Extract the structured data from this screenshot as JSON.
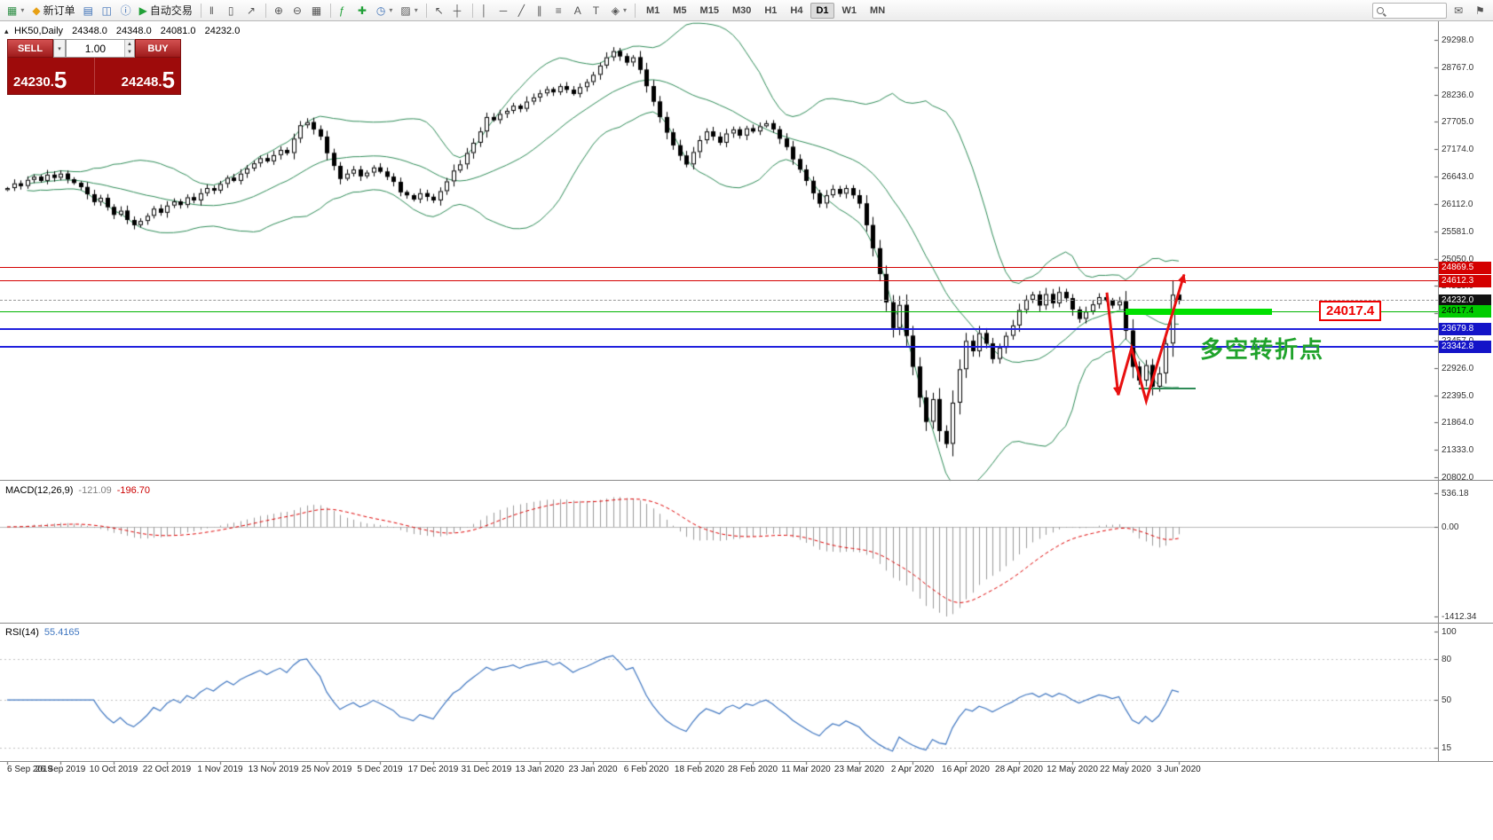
{
  "toolbar": {
    "groups": [
      [
        {
          "name": "new-chart-button",
          "glyph": "▦",
          "glyph_color": "#2f8f46",
          "caret": true
        },
        {
          "name": "new-order-button",
          "glyph": "◆",
          "glyph_color": "#e7a013",
          "label": "新订单"
        },
        {
          "name": "market-watch-button",
          "glyph": "▤",
          "glyph_color": "#3b6fb6"
        },
        {
          "name": "data-window-button",
          "glyph": "◫",
          "glyph_color": "#3b6fb6"
        },
        {
          "name": "navigator-button",
          "glyph": "ⓘ",
          "glyph_color": "#3b6fb6"
        },
        {
          "name": "autotrading-button",
          "glyph": "▶",
          "glyph_color": "#21a038",
          "label": "自动交易"
        }
      ],
      [
        {
          "name": "chart-bars-button",
          "glyph": "‖"
        },
        {
          "name": "chart-candles-button",
          "glyph": "▯"
        },
        {
          "name": "chart-line-button",
          "glyph": "↗"
        }
      ],
      [
        {
          "name": "zoom-in-button",
          "glyph": "⊕"
        },
        {
          "name": "zoom-out-button",
          "glyph": "⊖"
        },
        {
          "name": "tile-windows-button",
          "glyph": "▦"
        }
      ],
      [
        {
          "name": "indicators-button",
          "glyph": "ƒ",
          "glyph_color": "#21a038"
        },
        {
          "name": "add-indicator-button",
          "glyph": "✚",
          "glyph_color": "#21a038"
        },
        {
          "name": "periods-button",
          "glyph": "◷",
          "glyph_color": "#3b6fb6",
          "caret": true
        },
        {
          "name": "templates-button",
          "glyph": "▨",
          "caret": true
        }
      ],
      [
        {
          "name": "cursor-button",
          "glyph": "↖"
        },
        {
          "name": "crosshair-button",
          "glyph": "┼"
        }
      ],
      [
        {
          "name": "vertical-line-button",
          "glyph": "│"
        },
        {
          "name": "horizontal-line-button",
          "glyph": "─"
        },
        {
          "name": "trendline-button",
          "glyph": "╱"
        },
        {
          "name": "channel-button",
          "glyph": "∥"
        },
        {
          "name": "fibonacci-button",
          "glyph": "≡"
        },
        {
          "name": "text-button",
          "glyph": "A"
        },
        {
          "name": "label-button",
          "glyph": "T"
        },
        {
          "name": "objects-button",
          "glyph": "◈",
          "caret": true
        }
      ]
    ],
    "timeframes": [
      "M1",
      "M5",
      "M15",
      "M30",
      "H1",
      "H4",
      "D1",
      "W1",
      "MN"
    ],
    "active_timeframe": "D1",
    "search_placeholder": "",
    "right_icons": [
      {
        "name": "community-button",
        "glyph": "✉"
      },
      {
        "name": "alerts-button",
        "glyph": "⚑"
      }
    ]
  },
  "trade_panel": {
    "sell_label": "SELL",
    "buy_label": "BUY",
    "volume": "1.00",
    "sell_price_main": "24230.",
    "sell_price_big": "5",
    "buy_price_main": "24248.",
    "buy_price_big": "5"
  },
  "chart": {
    "collapse_arrow": "▴",
    "symbol_line": "HK50,Daily",
    "open": "24348.0",
    "high": "24348.0",
    "low": "24081.0",
    "close": "24232.0",
    "y_ticks": [
      {
        "label": "29298.0",
        "price": 29298
      },
      {
        "label": "28767.0",
        "price": 28767
      },
      {
        "label": "28236.0",
        "price": 28236
      },
      {
        "label": "27705.0",
        "price": 27705
      },
      {
        "label": "27174.0",
        "price": 27174
      },
      {
        "label": "26643.0",
        "price": 26643
      },
      {
        "label": "26112.0",
        "price": 26112
      },
      {
        "label": "25581.0",
        "price": 25581
      },
      {
        "label": "25050.0",
        "price": 25050
      },
      {
        "label": "24519.0",
        "price": 24519
      },
      {
        "label": "23988.0",
        "price": 23988
      },
      {
        "label": "23457.0",
        "price": 23457
      },
      {
        "label": "22926.0",
        "price": 22926
      },
      {
        "label": "22395.0",
        "price": 22395
      },
      {
        "label": "21864.0",
        "price": 21864
      },
      {
        "label": "21333.0",
        "price": 21333
      },
      {
        "label": "20802.0",
        "price": 20802
      }
    ],
    "price_labels": [
      {
        "text": "24869.5",
        "price": 24869.5,
        "bg": "#d40000",
        "fg": "#ffffff"
      },
      {
        "text": "24612.3",
        "price": 24612.3,
        "bg": "#d40000",
        "fg": "#ffffff"
      },
      {
        "text": "24232.0",
        "price": 24232.0,
        "bg": "#111111",
        "fg": "#ffffff"
      },
      {
        "text": "24017.4",
        "price": 24017.4,
        "bg": "#00cc00",
        "fg": "#000000"
      },
      {
        "text": "23679.8",
        "price": 23679.8,
        "bg": "#1414c8",
        "fg": "#ffffff"
      },
      {
        "text": "23342.8",
        "price": 23342.8,
        "bg": "#1414c8",
        "fg": "#ffffff"
      }
    ],
    "hlines": [
      {
        "price": 24869.5,
        "color": "#d40000",
        "style": "solid",
        "thickness": 1
      },
      {
        "price": 24612.3,
        "color": "#d40000",
        "style": "solid",
        "thickness": 1
      },
      {
        "price": 24232.0,
        "color": "#999999",
        "style": "dashed",
        "thickness": 1
      },
      {
        "price": 24017.4,
        "color": "#00b400",
        "style": "solid",
        "thickness": 1
      },
      {
        "price": 23679.8,
        "color": "#2020dd",
        "style": "solid",
        "thickness": 2
      },
      {
        "price": 23342.8,
        "color": "#2020dd",
        "style": "solid",
        "thickness": 2
      }
    ],
    "green_zone": {
      "price": 24017.4,
      "from_bar": 168,
      "to_bar": 190,
      "color": "#00e000",
      "thickness": 7
    },
    "support_segment": {
      "price": 22530,
      "from_bar": 170,
      "to_bar": 178.5,
      "color": "#2E8B57",
      "thickness": 2
    },
    "annotation_price_box": {
      "text": "24017.4",
      "color": "#ee0000"
    },
    "annotation_turning_point": {
      "text": "多空转折点",
      "color": "#1fa32b"
    },
    "arrows": {
      "color": "#e81010",
      "points_bar_price": [
        [
          165.2,
          24390
        ],
        [
          166.9,
          22400
        ],
        [
          168.9,
          23310
        ],
        [
          171.1,
          22280
        ],
        [
          176.8,
          24740
        ]
      ]
    }
  },
  "chart_data": {
    "type": "candlestick",
    "symbol": "HK50",
    "timeframe": "Daily",
    "title": "HK50,Daily 24348.0 24348.0 24081.0 24232.0",
    "x_dates": [
      "6 Sep 2019",
      "26 Sep 2019",
      "10 Oct 2019",
      "22 Oct 2019",
      "1 Nov 2019",
      "13 Nov 2019",
      "25 Nov 2019",
      "5 Dec 2019",
      "17 Dec 2019",
      "31 Dec 2019",
      "13 Jan 2020",
      "23 Jan 2020",
      "6 Feb 2020",
      "18 Feb 2020",
      "28 Feb 2020",
      "11 Mar 2020",
      "23 Mar 2020",
      "2 Apr 2020",
      "16 Apr 2020",
      "28 Apr 2020",
      "12 May 2020",
      "22 May 2020",
      "3 Jun 2020"
    ],
    "closes": [
      26420,
      26510,
      26460,
      26580,
      26640,
      26560,
      26680,
      26620,
      26700,
      26590,
      26520,
      26440,
      26300,
      26150,
      26230,
      26050,
      25900,
      25980,
      25800,
      25700,
      25780,
      25880,
      26020,
      25940,
      26080,
      26160,
      26090,
      26240,
      26180,
      26320,
      26420,
      26370,
      26500,
      26620,
      26560,
      26700,
      26800,
      26900,
      27000,
      26940,
      27060,
      27160,
      27100,
      27380,
      27640,
      27700,
      27560,
      27420,
      27100,
      26850,
      26600,
      26700,
      26780,
      26650,
      26720,
      26820,
      26740,
      26640,
      26540,
      26340,
      26280,
      26200,
      26320,
      26250,
      26180,
      26360,
      26550,
      26760,
      26880,
      27100,
      27300,
      27520,
      27800,
      27740,
      27860,
      27920,
      28020,
      27960,
      28100,
      28180,
      28260,
      28340,
      28280,
      28400,
      28330,
      28250,
      28380,
      28480,
      28620,
      28800,
      28960,
      29080,
      28980,
      28860,
      28960,
      28720,
      28400,
      28100,
      27800,
      27500,
      27250,
      27050,
      26880,
      27120,
      27350,
      27520,
      27420,
      27300,
      27480,
      27560,
      27440,
      27580,
      27520,
      27620,
      27680,
      27560,
      27380,
      27220,
      26980,
      26780,
      26560,
      26320,
      26120,
      26280,
      26400,
      26310,
      26420,
      26280,
      26120,
      25700,
      25250,
      24750,
      24200,
      23700,
      24150,
      23550,
      22950,
      22350,
      21880,
      22320,
      21700,
      21450,
      22250,
      22900,
      23450,
      23250,
      23600,
      23400,
      23100,
      23320,
      23550,
      23750,
      24050,
      24250,
      24350,
      24140,
      24360,
      24180,
      24400,
      24280,
      24060,
      23880,
      24020,
      24160,
      24300,
      24240,
      24140,
      24220,
      23650,
      22950,
      22680,
      22980,
      22560,
      22820,
      23400,
      24348,
      24232
    ],
    "overlays": [
      {
        "name": "Bollinger Bands",
        "period": 20,
        "deviation": 2,
        "color": "#2E8B57"
      }
    ],
    "macd": {
      "label": "MACD(12,26,9)",
      "value_main": "-121.09",
      "value_signal": "-196.70",
      "params": [
        12,
        26,
        9
      ],
      "axis_labels": [
        {
          "label": "536.18",
          "value": 536.18
        },
        {
          "label": "0.00",
          "value": 0
        },
        {
          "label": "-1412.34",
          "value": -1412.34
        }
      ]
    },
    "rsi": {
      "label": "RSI(14)",
      "value": "55.4165",
      "period": 14,
      "axis_labels": [
        {
          "label": "100",
          "value": 100
        },
        {
          "label": "80",
          "value": 80
        },
        {
          "label": "50",
          "value": 50
        },
        {
          "label": "15",
          "value": 15
        }
      ]
    }
  }
}
